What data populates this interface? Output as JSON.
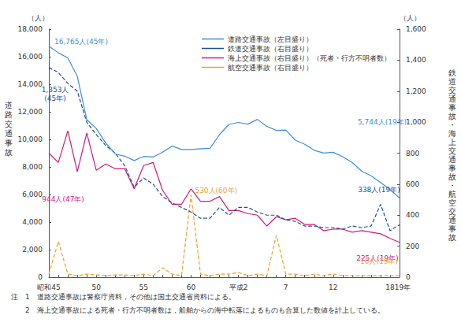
{
  "chart_data": {
    "type": "line",
    "y_unit": "（人）",
    "y2_unit": "（人）",
    "ylabel": "道路交通事故",
    "y2label": "鉄道交通事故・海上交通事故・航空交通事故",
    "categories": [
      "昭和45",
      null,
      null,
      null,
      null,
      "50",
      null,
      null,
      null,
      null,
      "55",
      null,
      null,
      null,
      null,
      "60",
      null,
      null,
      null,
      null,
      "平成2",
      null,
      null,
      null,
      null,
      "7",
      null,
      null,
      null,
      null,
      "12",
      null,
      null,
      null,
      null,
      null,
      "18",
      "19年"
    ],
    "ylim": [
      0,
      18000
    ],
    "yticks": [
      0,
      {
        "value": 2000,
        "label": "2,000"
      },
      {
        "value": 4000,
        "label": "4,000"
      },
      {
        "value": 6000,
        "label": "6,000"
      },
      {
        "value": 8000,
        "label": "8,000"
      },
      {
        "value": 10000,
        "label": "10,000"
      },
      {
        "value": 12000,
        "label": "12,000"
      },
      {
        "value": 14000,
        "label": "14,000"
      },
      {
        "value": 16000,
        "label": "16,000"
      },
      {
        "value": 18000,
        "label": "18,000"
      }
    ],
    "y2lim": [
      0,
      1600
    ],
    "y2ticks": [
      0,
      200,
      400,
      600,
      800,
      {
        "value": 1000,
        "label": "1,000"
      },
      {
        "value": 1200,
        "label": "1,200"
      },
      {
        "value": 1400,
        "label": "1,400"
      },
      {
        "value": 1600,
        "label": "1,600"
      }
    ],
    "grid": false,
    "legend": "top-right",
    "series": [
      {
        "name": "道路交通事故（左目盛り）",
        "color": "#3d8fdc",
        "line_style": "solid",
        "values": [
          16765,
          16278,
          15918,
          14574,
          11432,
          10792,
          9734,
          8945,
          8783,
          8466,
          8760,
          8719,
          9073,
          9520,
          9262,
          9261,
          9317,
          9347,
          10344,
          11086,
          11227,
          11109,
          11451,
          10942,
          10649,
          10679,
          9942,
          9640,
          9211,
          9006,
          9066,
          8747,
          8326,
          7702,
          7358,
          6871,
          6352,
          5744
        ]
      },
      {
        "name": "鉄道交通事故（右目盛り）",
        "color": "#1f4e9a",
        "line_style": "dashed",
        "axis": "y2",
        "values": [
          1353,
          1320,
          1250,
          1200,
          1000,
          920,
          850,
          800,
          720,
          580,
          640,
          600,
          520,
          480,
          450,
          420,
          380,
          380,
          450,
          400,
          450,
          450,
          420,
          400,
          400,
          370,
          360,
          330,
          330,
          320,
          320,
          310,
          330,
          320,
          330,
          470,
          300,
          338
        ]
      },
      {
        "name": "海上交通事故（右目盛り）（死者・行方不明者数）",
        "color": "#d6177c",
        "line_style": "solid",
        "axis": "y2",
        "values": [
          800,
          740,
          944,
          680,
          930,
          690,
          730,
          700,
          700,
          570,
          720,
          740,
          560,
          470,
          470,
          570,
          490,
          490,
          520,
          430,
          430,
          410,
          400,
          330,
          390,
          370,
          380,
          340,
          340,
          300,
          310,
          310,
          290,
          300,
          290,
          280,
          250,
          225
        ]
      },
      {
        "name": "航空交通事故（右目盛り）",
        "color": "#f0a030",
        "line_style": "dashed",
        "axis": "y2",
        "values": [
          20,
          230,
          20,
          10,
          20,
          15,
          10,
          15,
          15,
          10,
          20,
          10,
          60,
          20,
          10,
          530,
          20,
          10,
          20,
          20,
          30,
          10,
          20,
          10,
          270,
          20,
          20,
          10,
          20,
          10,
          20,
          10,
          10,
          10,
          10,
          10,
          10,
          10
        ]
      }
    ],
    "annotations": [
      {
        "text": "16,765人(45年)",
        "series": 0,
        "index": 0,
        "y": 16765
      },
      {
        "text": "1,353人\n(45年)",
        "series": 1,
        "index": 0,
        "y": 1353
      },
      {
        "text": "944人(47年)",
        "series": 2,
        "index": 2,
        "y": 944
      },
      {
        "text": "530人(60年)",
        "series": 3,
        "index": 15,
        "y": 530
      },
      {
        "text": "5,744人(19年)",
        "series": 0,
        "index": 37,
        "y": 5744
      },
      {
        "text": "338人(19年)",
        "series": 1,
        "index": 37,
        "y": 338
      },
      {
        "text": "225人(19年)",
        "series": 2,
        "index": 37,
        "y": 225
      },
      {
        "text": "10人(19年)",
        "series": 3,
        "index": 37,
        "y": 10
      }
    ],
    "notes": [
      "注　1　道路交通事故は警察庁資料，その他は国土交通省資料による。",
      "2　海上交通事故による死者・行方不明者数は，船舶からの海中転落によるものも合算した数値を計上している。"
    ]
  }
}
